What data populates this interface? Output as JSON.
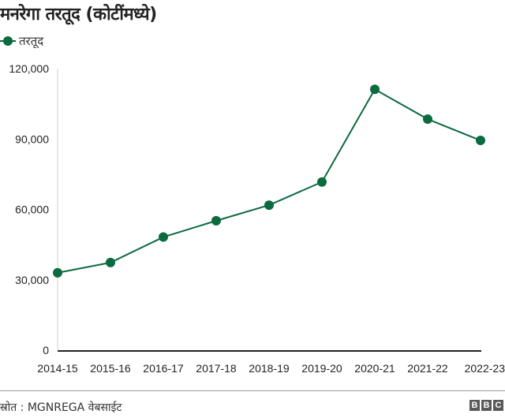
{
  "header": {
    "title": "मनरेगा तरतूद (कोटींमध्ये)"
  },
  "legend": {
    "label": "तरतूद",
    "icon": "line-dot-marker-icon"
  },
  "footer": {
    "source": "स्रोत : MGNREGA वेबसाईट",
    "logo_letters": [
      "B",
      "B",
      "C"
    ]
  },
  "colors": {
    "series": "#0b6a3f",
    "baseline": "#222222",
    "axis": "#cccccc"
  },
  "chart_data": {
    "type": "line",
    "title": "मनरेगा तरतूद (कोटींमध्ये)",
    "xlabel": "",
    "ylabel": "",
    "categories": [
      "2014-15",
      "2015-16",
      "2016-17",
      "2017-18",
      "2018-19",
      "2019-20",
      "2020-21",
      "2021-22",
      "2022-23"
    ],
    "series": [
      {
        "name": "तरतूद",
        "values": [
          32977,
          37341,
          48220,
          55166,
          61815,
          71687,
          111170,
          98468,
          89400
        ]
      }
    ],
    "yticks": [
      0,
      30000,
      60000,
      90000,
      120000
    ],
    "ytick_labels": [
      "0",
      "30,000",
      "60,000",
      "90,000",
      "120,000"
    ],
    "ylim": [
      0,
      120000
    ],
    "grid": false,
    "legend_position": "top-left",
    "markers": true
  }
}
